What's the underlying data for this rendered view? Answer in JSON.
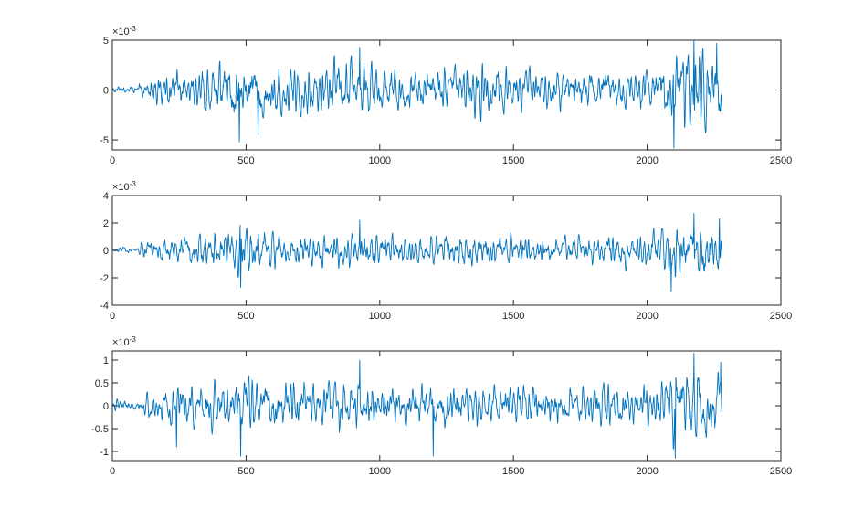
{
  "figure": {
    "background": "#ffffff",
    "axis_color": "#262626"
  },
  "chart_data": [
    {
      "type": "line",
      "title": "",
      "xlabel": "",
      "ylabel": "",
      "xlim": [
        0,
        2500
      ],
      "ylim": [
        -6,
        5
      ],
      "x_ticks": [
        0,
        500,
        1000,
        1500,
        2000,
        2500
      ],
      "x_tick_labels": [
        "0",
        "500",
        "1000",
        "1500",
        "2000",
        "2500"
      ],
      "y_ticks": [
        -5,
        0,
        5
      ],
      "y_tick_labels": [
        "-5",
        "0",
        "5"
      ],
      "exponent_label": {
        "base": "×10",
        "power": "-3"
      },
      "grid": false,
      "legend": "none",
      "series": [
        {
          "color": "#0072bd",
          "x_start": 0,
          "x_end": 2280,
          "n_points": 2281,
          "quiet_until": 100,
          "quiet_amplitude": 0.3,
          "envelope": [
            [
              100,
              1.5
            ],
            [
              150,
              2.0
            ],
            [
              250,
              3.0
            ],
            [
              350,
              3.2
            ],
            [
              450,
              4.2
            ],
            [
              500,
              4.5
            ],
            [
              700,
              3.2
            ],
            [
              900,
              3.6
            ],
            [
              1000,
              3.2
            ],
            [
              1300,
              3.4
            ],
            [
              1700,
              2.6
            ],
            [
              2000,
              3.0
            ],
            [
              2100,
              5.2
            ],
            [
              2200,
              5.5
            ],
            [
              2280,
              4.8
            ]
          ],
          "extremes": [
            {
              "x": 475,
              "y": -5.2
            },
            {
              "x": 545,
              "y": -4.5
            },
            {
              "x": 925,
              "y": 4.3
            },
            {
              "x": 2100,
              "y": -5.8
            },
            {
              "x": 2175,
              "y": 5.0
            },
            {
              "x": 2260,
              "y": 4.7
            }
          ]
        }
      ]
    },
    {
      "type": "line",
      "title": "",
      "xlabel": "",
      "ylabel": "",
      "xlim": [
        0,
        2500
      ],
      "ylim": [
        -4,
        4
      ],
      "x_ticks": [
        0,
        500,
        1000,
        1500,
        2000,
        2500
      ],
      "x_tick_labels": [
        "0",
        "500",
        "1000",
        "1500",
        "2000",
        "2500"
      ],
      "y_ticks": [
        -4,
        -2,
        0,
        2,
        4
      ],
      "y_tick_labels": [
        "-4",
        "-2",
        "0",
        "2",
        "4"
      ],
      "exponent_label": {
        "base": "×10",
        "power": "-3"
      },
      "grid": false,
      "legend": "none",
      "series": [
        {
          "color": "#0072bd",
          "x_start": 0,
          "x_end": 2280,
          "n_points": 2281,
          "quiet_until": 100,
          "quiet_amplitude": 0.15,
          "envelope": [
            [
              100,
              0.6
            ],
            [
              200,
              1.3
            ],
            [
              350,
              1.5
            ],
            [
              500,
              2.1
            ],
            [
              700,
              1.5
            ],
            [
              900,
              1.7
            ],
            [
              1000,
              1.4
            ],
            [
              1300,
              1.5
            ],
            [
              1700,
              1.2
            ],
            [
              2000,
              1.6
            ],
            [
              2100,
              2.4
            ],
            [
              2200,
              2.6
            ],
            [
              2280,
              2.3
            ]
          ],
          "extremes": [
            {
              "x": 480,
              "y": -2.7
            },
            {
              "x": 925,
              "y": 2.2
            },
            {
              "x": 2090,
              "y": -3.0
            },
            {
              "x": 2175,
              "y": 2.7
            },
            {
              "x": 2270,
              "y": 2.3
            }
          ]
        }
      ]
    },
    {
      "type": "line",
      "title": "",
      "xlabel": "",
      "ylabel": "",
      "xlim": [
        0,
        2500
      ],
      "ylim": [
        -1.2,
        1.2
      ],
      "x_ticks": [
        0,
        500,
        1000,
        1500,
        2000,
        2500
      ],
      "x_tick_labels": [
        "0",
        "500",
        "1000",
        "1500",
        "2000",
        "2500"
      ],
      "y_ticks": [
        -1,
        -0.5,
        0,
        0.5,
        1
      ],
      "y_tick_labels": [
        "-1",
        "-0.5",
        "0",
        "0.5",
        "1"
      ],
      "exponent_label": {
        "base": "×10",
        "power": "-3"
      },
      "grid": false,
      "legend": "none",
      "series": [
        {
          "color": "#0072bd",
          "x_start": 0,
          "x_end": 2280,
          "n_points": 2281,
          "quiet_until": 100,
          "quiet_amplitude": 0.08,
          "envelope": [
            [
              100,
              0.3
            ],
            [
              200,
              0.55
            ],
            [
              350,
              0.6
            ],
            [
              500,
              0.8
            ],
            [
              700,
              0.6
            ],
            [
              900,
              0.7
            ],
            [
              1000,
              0.55
            ],
            [
              1300,
              0.6
            ],
            [
              1700,
              0.5
            ],
            [
              2000,
              0.6
            ],
            [
              2100,
              0.95
            ],
            [
              2200,
              1.05
            ],
            [
              2280,
              0.9
            ]
          ],
          "extremes": [
            {
              "x": 240,
              "y": -0.9
            },
            {
              "x": 480,
              "y": -1.1
            },
            {
              "x": 925,
              "y": 1.0
            },
            {
              "x": 1200,
              "y": -1.1
            },
            {
              "x": 2105,
              "y": -1.15
            },
            {
              "x": 2175,
              "y": 1.15
            },
            {
              "x": 2275,
              "y": 0.95
            }
          ]
        }
      ]
    }
  ]
}
